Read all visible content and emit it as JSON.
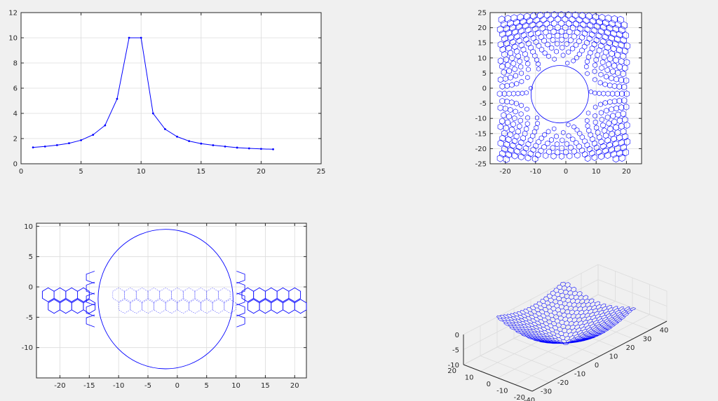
{
  "figure": {
    "background": "#f0f0f0",
    "axes_background": "#ffffff",
    "axis_color": "#262626",
    "grid_color": "#dcdcdc",
    "line_color": "#0000ff"
  },
  "chart_data": [
    {
      "type": "line",
      "title": "",
      "xlabel": "",
      "ylabel": "",
      "xlim": [
        0,
        25
      ],
      "ylim": [
        0,
        12
      ],
      "xticks": [
        0,
        5,
        10,
        15,
        20,
        25
      ],
      "yticks": [
        0,
        2,
        4,
        6,
        8,
        10,
        12
      ],
      "grid": true,
      "marker": "point",
      "series": [
        {
          "x": [
            1,
            2,
            3,
            4,
            5,
            6,
            7,
            8,
            9,
            10,
            11,
            12,
            13,
            14,
            15,
            16,
            17,
            18,
            19,
            20,
            21
          ],
          "values": [
            1.3,
            1.37,
            1.48,
            1.63,
            1.87,
            2.3,
            3.05,
            5.15,
            10.0,
            10.0,
            4.0,
            2.75,
            2.15,
            1.8,
            1.6,
            1.47,
            1.37,
            1.28,
            1.22,
            1.18,
            1.15
          ]
        }
      ]
    },
    {
      "type": "scatter",
      "title": "",
      "description": "hexagonal lattice distorted around a circular hole",
      "xlim": [
        -25,
        25
      ],
      "ylim": [
        -25,
        25
      ],
      "xticks": [
        -20,
        -10,
        0,
        10,
        20
      ],
      "yticks": [
        -25,
        -20,
        -15,
        -10,
        -5,
        0,
        5,
        10,
        15,
        20,
        25
      ],
      "grid": true,
      "hole_center": [
        -2,
        -2
      ],
      "hole_radius": 9.5,
      "lattice_extent": {
        "x": [
          -21,
          19.5
        ],
        "y": [
          -22.5,
          24
        ]
      }
    },
    {
      "type": "scatter",
      "title": "",
      "description": "single row of hexagons around a circle, inner hexagons dotted",
      "xlim": [
        -24,
        22
      ],
      "ylim": [
        -15,
        10.5
      ],
      "xticks": [
        -20,
        -15,
        -10,
        -5,
        0,
        5,
        10,
        15,
        20
      ],
      "yticks": [
        -10,
        -5,
        0,
        5,
        10
      ],
      "grid": true,
      "circle_center": [
        -2,
        -2
      ],
      "circle_radius": 11.5,
      "hex_row_y": -1.3,
      "outer_hex_x": [
        -22,
        -20,
        -18,
        -16,
        12,
        14,
        16,
        18,
        20
      ],
      "inner_hex_x": [
        -10,
        -8,
        -6,
        -4,
        -2,
        0,
        2,
        4,
        6,
        8
      ]
    },
    {
      "type": "surface",
      "title": "",
      "description": "3-D view of the hexagonal lattice deformed into a funnel",
      "xlim": [
        -40,
        40
      ],
      "ylim": [
        -20,
        20
      ],
      "zlim": [
        -10,
        0
      ],
      "xticks": [
        -40,
        -30,
        -20,
        -10,
        0,
        10,
        20,
        30,
        40
      ],
      "yticks": [
        -20,
        -10,
        0,
        10,
        20
      ],
      "zticks": [
        -10,
        -5,
        0
      ],
      "grid": true,
      "funnel_center": [
        0,
        0
      ],
      "funnel_depth": -10,
      "lattice_extent": {
        "x": [
          -20,
          20
        ],
        "y": [
          -20,
          20
        ]
      }
    }
  ]
}
